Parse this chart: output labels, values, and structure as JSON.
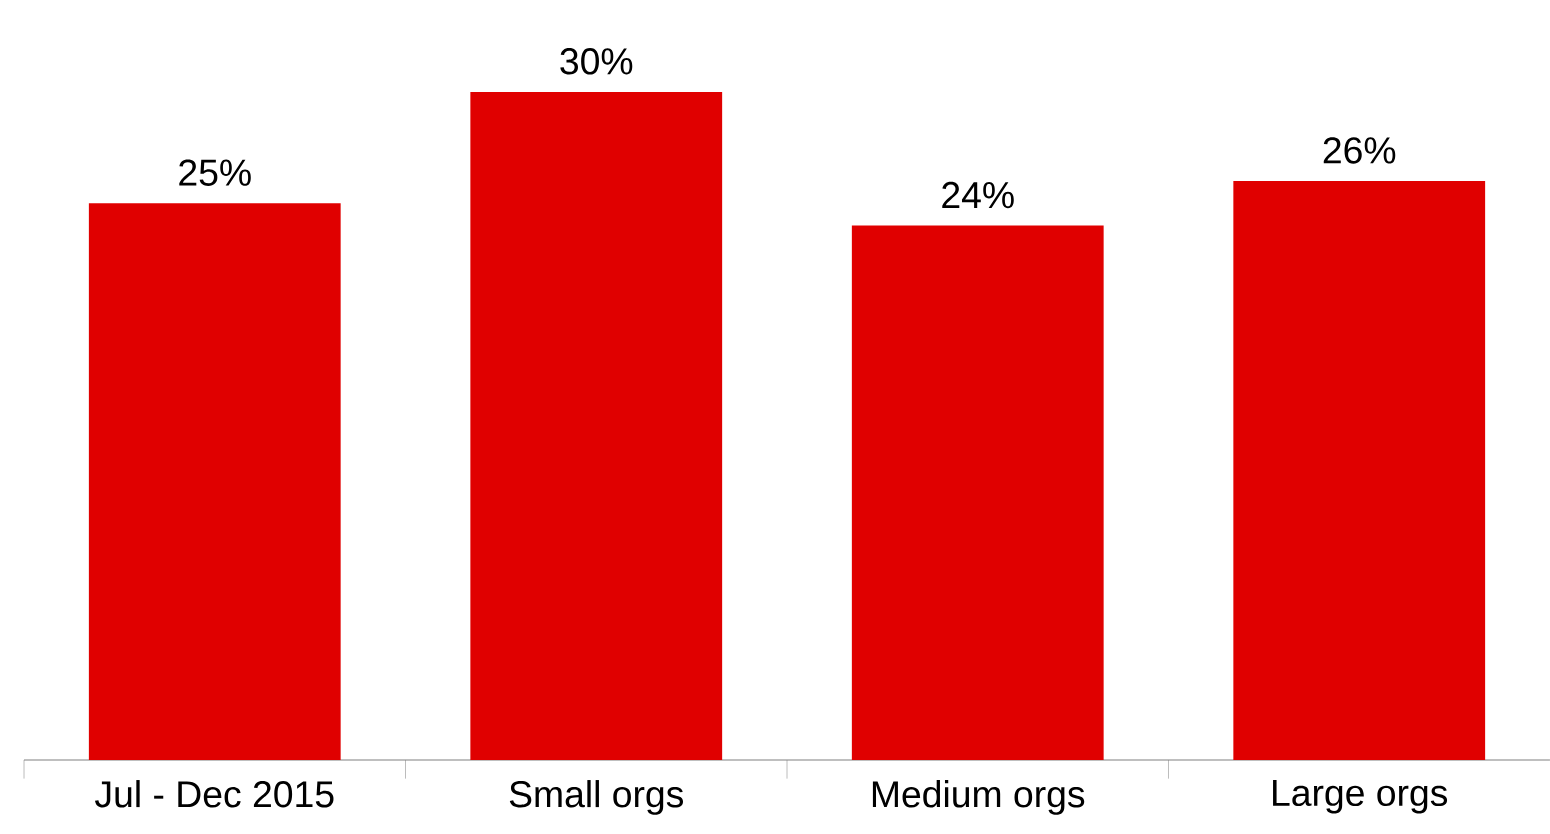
{
  "chart_data": {
    "type": "bar",
    "categories": [
      "Jul - Dec 2015",
      "Small orgs",
      "Medium orgs",
      "Large orgs"
    ],
    "values": [
      25,
      30,
      24,
      26
    ],
    "value_labels": [
      "25%",
      "30%",
      "24%",
      "26%"
    ],
    "color": "#e00000"
  }
}
